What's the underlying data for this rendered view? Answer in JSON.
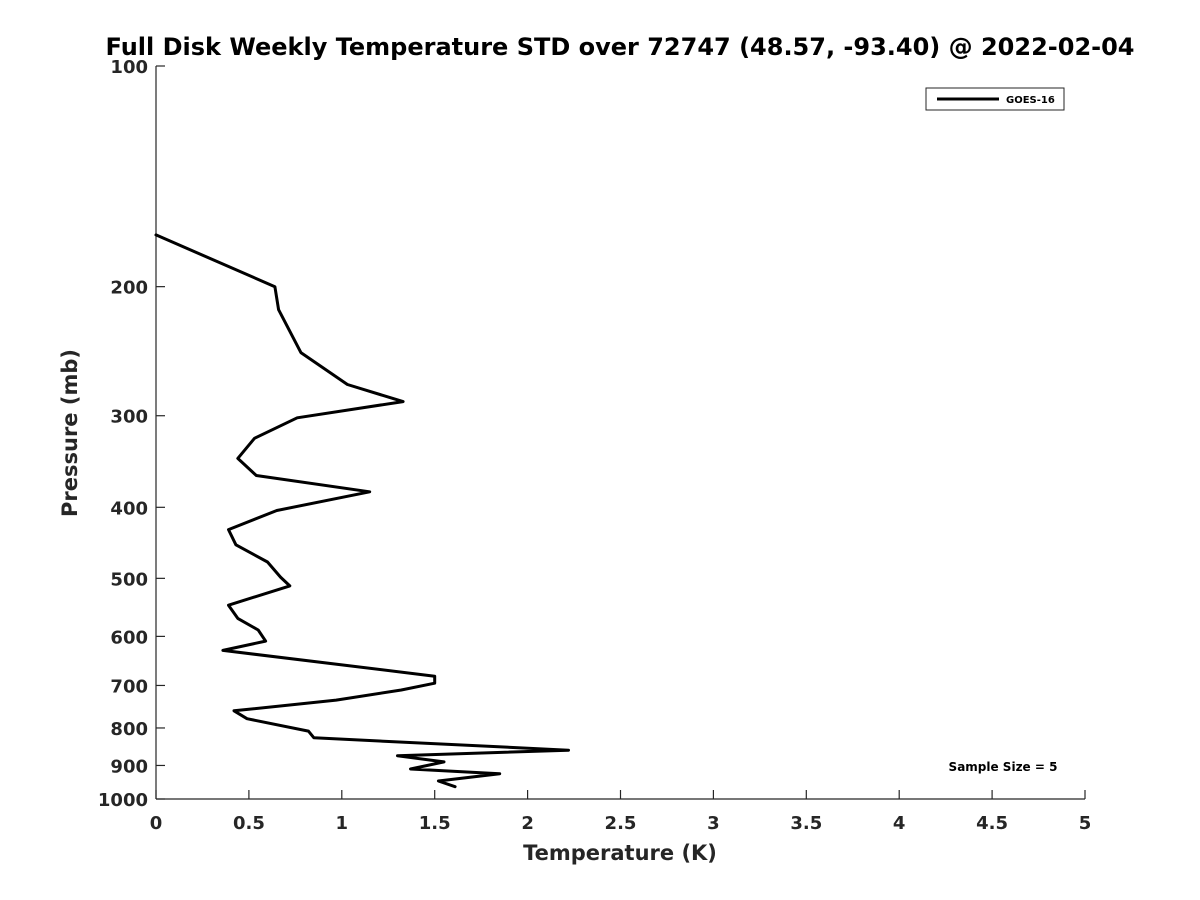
{
  "chart_data": {
    "type": "line",
    "title": "Full Disk Weekly Temperature STD over 72747 (48.57, -93.40) @ 2022-02-04",
    "xlabel": "Temperature (K)",
    "ylabel": "Pressure (mb)",
    "xlim": [
      0,
      5
    ],
    "ylim": [
      100,
      1000
    ],
    "y_scale": "log",
    "y_reversed": true,
    "xticks": [
      0,
      0.5,
      1,
      1.5,
      2,
      2.5,
      3,
      3.5,
      4,
      4.5,
      5
    ],
    "xtick_labels": [
      "0",
      "0.5",
      "1",
      "1.5",
      "2",
      "2.5",
      "3",
      "3.5",
      "4",
      "4.5",
      "5"
    ],
    "yticks": [
      100,
      200,
      300,
      400,
      500,
      600,
      700,
      800,
      900,
      1000
    ],
    "ytick_labels": [
      "100",
      "200",
      "300",
      "400",
      "500",
      "600",
      "700",
      "800",
      "900",
      "1000"
    ],
    "grid": false,
    "legend_position": "top-right",
    "annotation": "Sample Size = 5",
    "series": [
      {
        "name": "GOES-16",
        "color": "#000000",
        "points": [
          [
            0,
            170
          ],
          [
            0.64,
            200
          ],
          [
            0.66,
            215
          ],
          [
            0.78,
            246
          ],
          [
            1.03,
            272
          ],
          [
            1.33,
            287
          ],
          [
            0.76,
            302
          ],
          [
            0.53,
            322
          ],
          [
            0.44,
            343
          ],
          [
            0.54,
            362
          ],
          [
            1.15,
            381
          ],
          [
            0.65,
            404
          ],
          [
            0.39,
            429
          ],
          [
            0.43,
            450
          ],
          [
            0.6,
            475
          ],
          [
            0.67,
            498
          ],
          [
            0.72,
            512
          ],
          [
            0.39,
            544
          ],
          [
            0.44,
            567
          ],
          [
            0.55,
            588
          ],
          [
            0.59,
            609
          ],
          [
            0.36,
            627
          ],
          [
            1.5,
            680
          ],
          [
            1.5,
            695
          ],
          [
            1.32,
            710
          ],
          [
            0.97,
            733
          ],
          [
            0.42,
            758
          ],
          [
            0.49,
            777
          ],
          [
            0.82,
            808
          ],
          [
            0.85,
            825
          ],
          [
            2.22,
            858
          ],
          [
            1.3,
            873
          ],
          [
            1.55,
            890
          ],
          [
            1.37,
            910
          ],
          [
            1.85,
            924
          ],
          [
            1.52,
            945
          ],
          [
            1.61,
            962
          ]
        ]
      }
    ]
  }
}
